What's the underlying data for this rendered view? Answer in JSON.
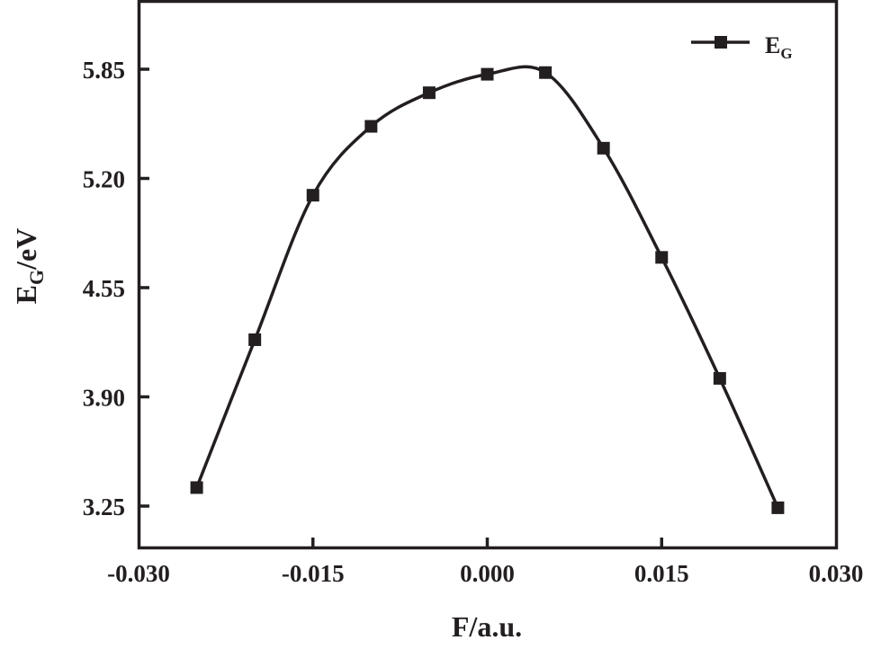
{
  "chart_data": {
    "type": "line",
    "title": "",
    "xlabel": "F/a.u.",
    "ylabel": "E_G/eV",
    "xlabel_parts": {
      "main": "F/a.u."
    },
    "ylabel_parts": {
      "main": "E",
      "sub": "G",
      "suffix": "/eV"
    },
    "xlim": [
      -0.03,
      0.03
    ],
    "ylim": [
      2.98,
      6.115
    ],
    "x_ticks": [
      -0.03,
      -0.015,
      0.0,
      0.015,
      0.03
    ],
    "x_tick_labels": [
      "-0.030",
      "-0.015",
      "0.000",
      "0.015",
      "0.030"
    ],
    "y_ticks": [
      3.25,
      3.9,
      4.55,
      5.2,
      5.85
    ],
    "y_tick_labels": [
      "3.25",
      "3.90",
      "4.55",
      "5.20",
      "5.85"
    ],
    "grid": false,
    "legend_position": "top-right",
    "series": [
      {
        "name": "E_G",
        "legend_main": "E",
        "legend_sub": "G",
        "marker": "square",
        "color": "#231f20",
        "smooth": true,
        "x": [
          -0.025,
          -0.02,
          -0.015,
          -0.01,
          -0.005,
          0.0,
          0.005,
          0.01,
          0.015,
          0.02,
          0.025
        ],
        "values": [
          3.36,
          4.24,
          5.1,
          5.51,
          5.71,
          5.82,
          5.83,
          5.38,
          4.73,
          4.01,
          3.24
        ]
      }
    ]
  }
}
